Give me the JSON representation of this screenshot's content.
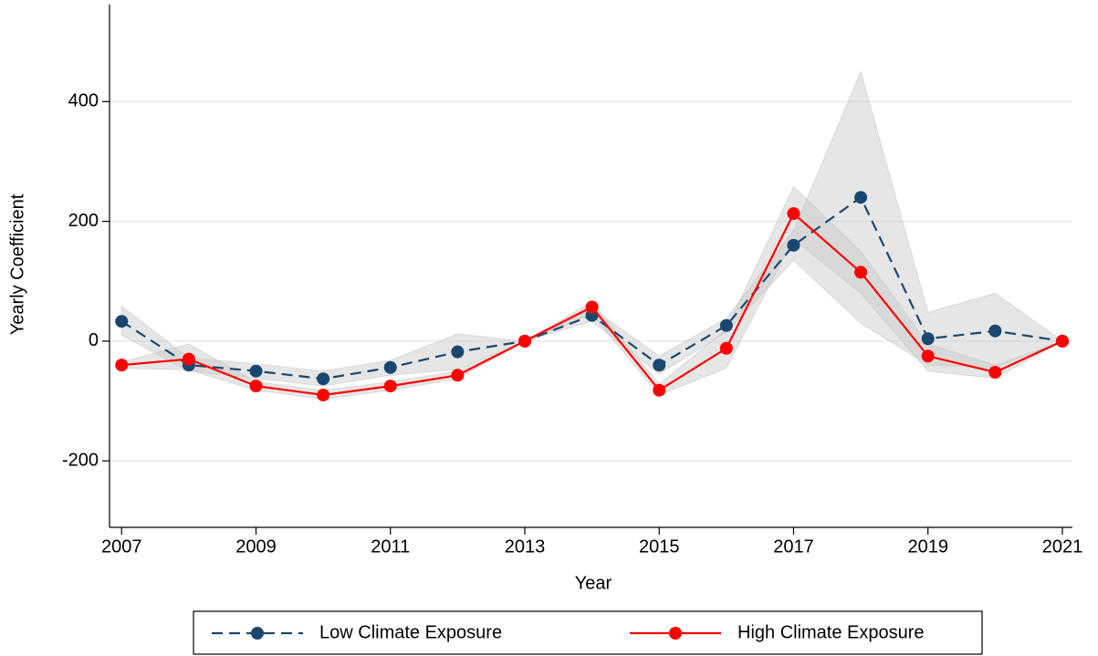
{
  "chart_data": {
    "type": "line",
    "x_label": "Year",
    "y_label": "Yearly Coefficient",
    "x": [
      2007,
      2008,
      2009,
      2010,
      2011,
      2012,
      2013,
      2014,
      2015,
      2016,
      2017,
      2018,
      2019,
      2020,
      2021
    ],
    "series": [
      {
        "name": "Low Climate Exposure",
        "color": "#1a476f",
        "dashed": true,
        "values": [
          33,
          -40,
          -50,
          -63,
          -44,
          -18,
          0,
          43,
          -40,
          26,
          160,
          240,
          4,
          17,
          0
        ],
        "ci_lower": [
          10,
          -50,
          -62,
          -75,
          -57,
          -47,
          0,
          33,
          -55,
          15,
          135,
          30,
          -40,
          -45,
          0
        ],
        "ci_upper": [
          58,
          -28,
          -38,
          -50,
          -32,
          12,
          0,
          55,
          -25,
          38,
          185,
          450,
          48,
          80,
          0
        ]
      },
      {
        "name": "High Climate Exposure",
        "color": "#ff0000",
        "dashed": false,
        "values": [
          -40,
          -30,
          -75,
          -90,
          -75,
          -57,
          0,
          57,
          -82,
          -12,
          213,
          115,
          -25,
          -52,
          0
        ],
        "ci_lower": [
          -45,
          -48,
          -82,
          -97,
          -82,
          -63,
          0,
          45,
          -90,
          -45,
          170,
          80,
          -50,
          -62,
          0
        ],
        "ci_upper": [
          -35,
          -5,
          -68,
          -82,
          -68,
          -50,
          0,
          65,
          -72,
          20,
          258,
          150,
          -5,
          -40,
          0
        ]
      }
    ],
    "xlim": [
      2006.82,
      2021.15
    ],
    "xticks": [
      2007,
      2009,
      2011,
      2013,
      2015,
      2017,
      2019,
      2021
    ],
    "ylim": [
      -311,
      562
    ],
    "yticks": [
      -200,
      0,
      200,
      400
    ],
    "grid": true,
    "band_color": "#c8c8c8",
    "legend": "bottom"
  }
}
